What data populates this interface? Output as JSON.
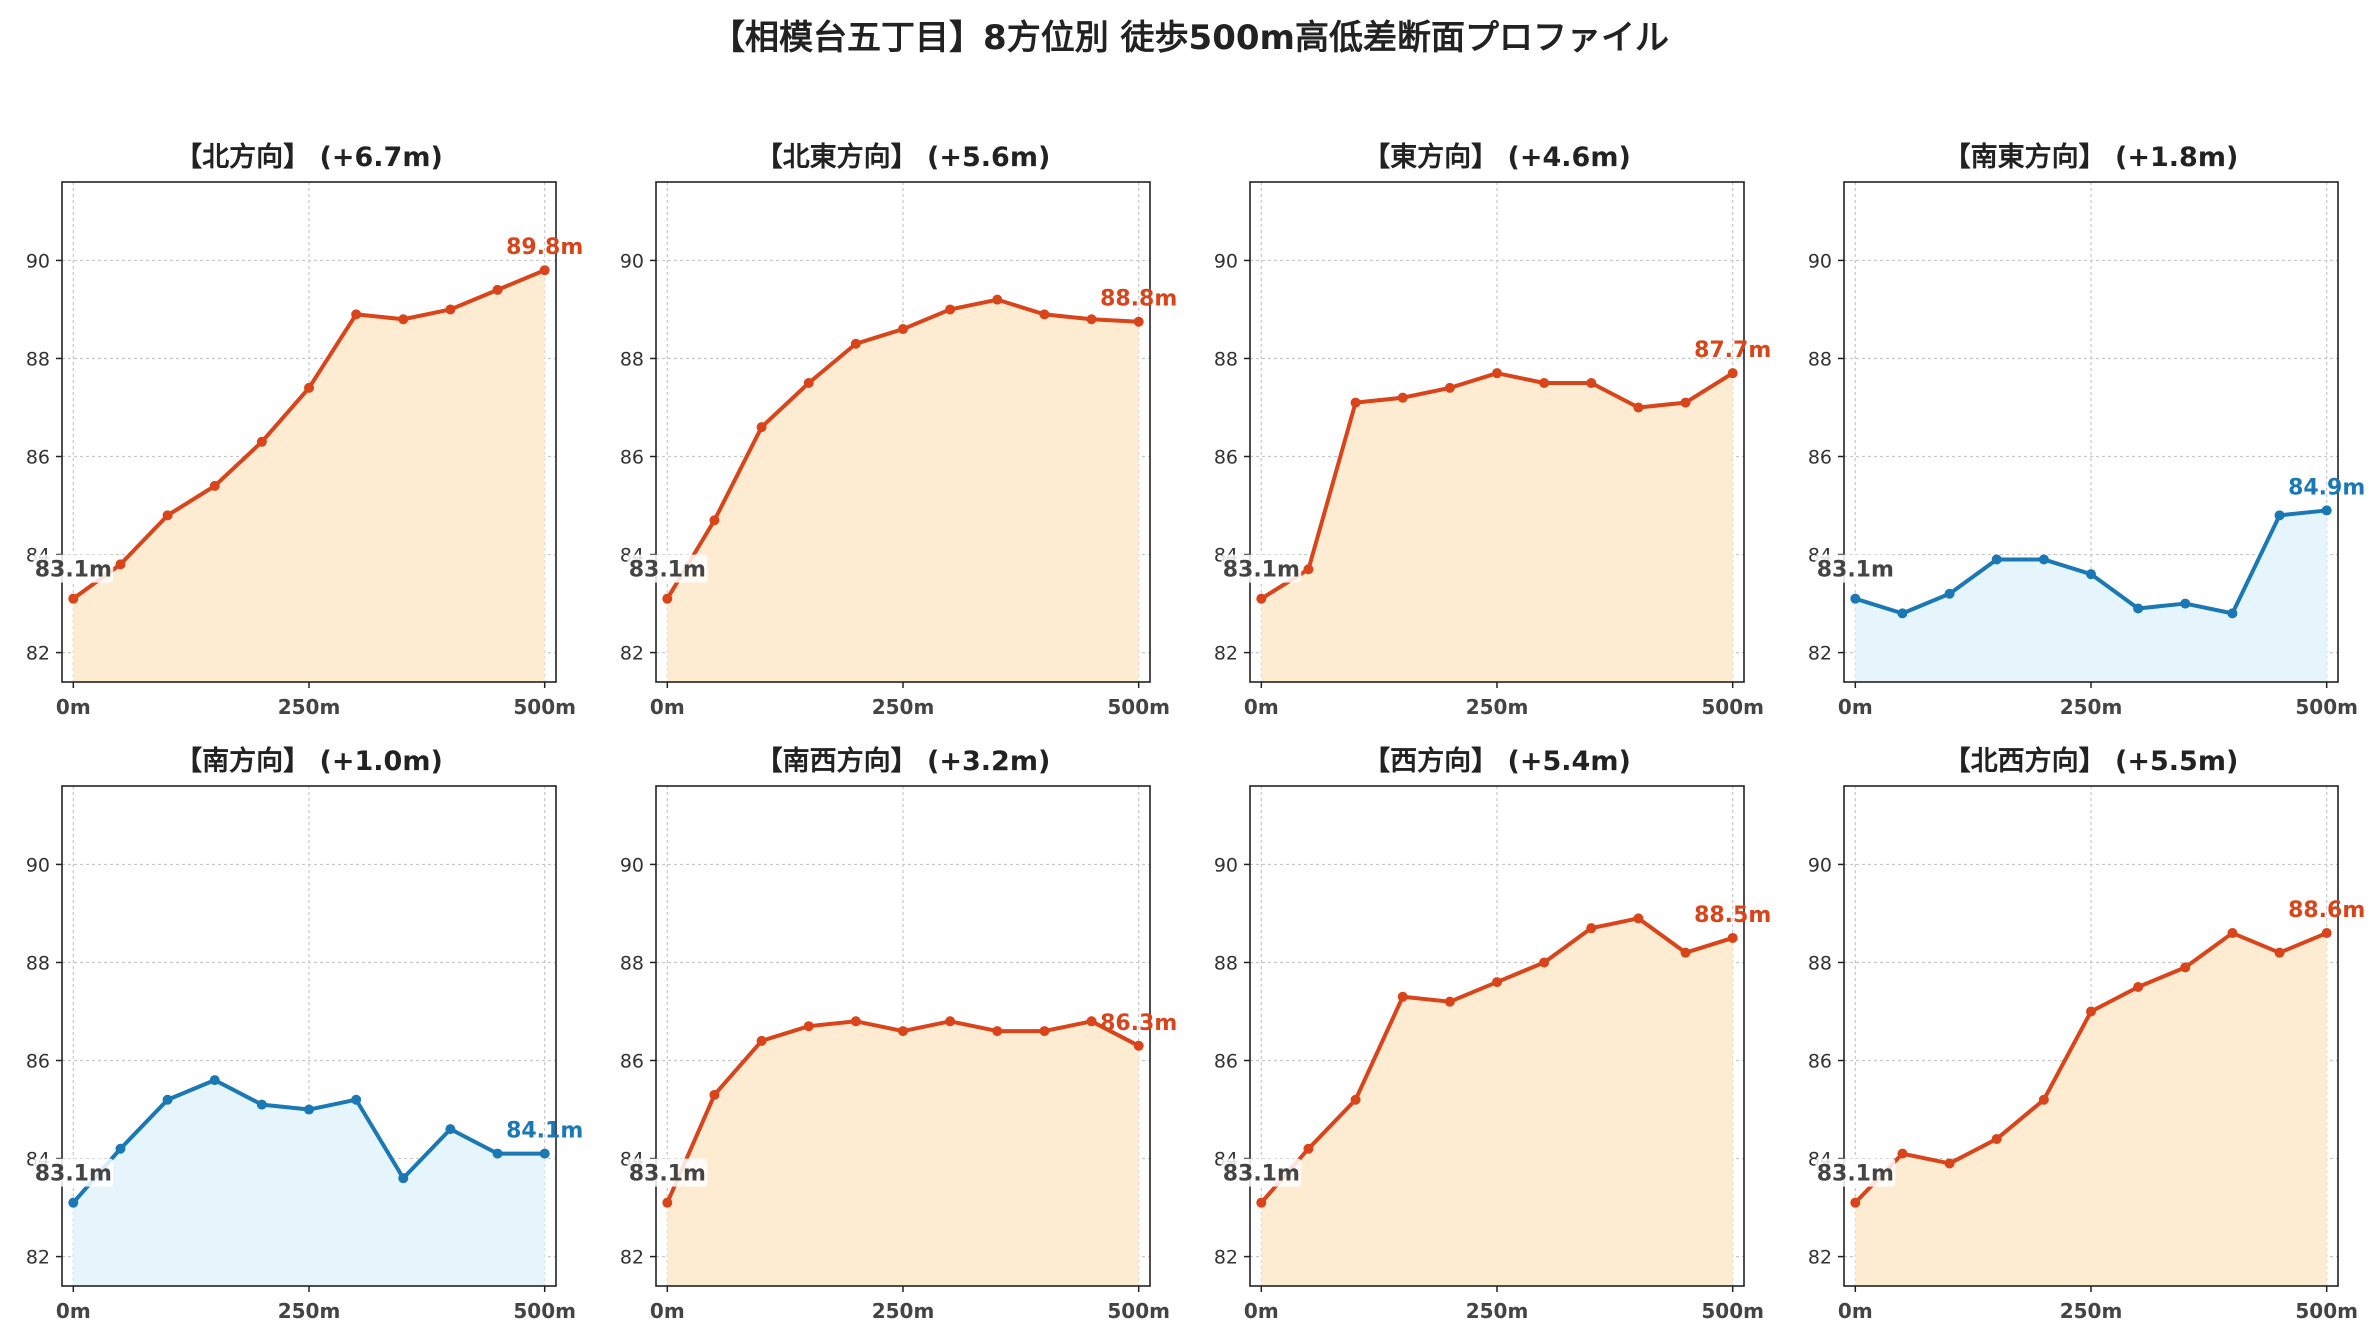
{
  "title": "【相模台五丁目】8方位別 徒歩500m高低差断面プロファイル",
  "colors": {
    "up_line": "#d9441a",
    "up_fill": "#fdecd2",
    "down_line": "#1a78b4",
    "down_fill": "#e6f4fb",
    "start_label": "#444444"
  },
  "chart_data": [
    {
      "type": "area",
      "title": "【北方向】 (+6.7m)",
      "trend": "up",
      "x": [
        0,
        50,
        100,
        150,
        200,
        250,
        300,
        350,
        400,
        450,
        500
      ],
      "values": [
        83.1,
        83.8,
        84.8,
        85.4,
        86.3,
        87.4,
        88.9,
        88.8,
        89.0,
        89.4,
        89.8
      ],
      "start_label": "83.1m",
      "end_label": "89.8m",
      "xticks": [
        "0m",
        "250m",
        "500m"
      ],
      "yticks": [
        82,
        84,
        86,
        88,
        90
      ],
      "ylim": [
        81.4,
        91.6
      ],
      "grid": true
    },
    {
      "type": "area",
      "title": "【北東方向】 (+5.6m)",
      "trend": "up",
      "x": [
        0,
        50,
        100,
        150,
        200,
        250,
        300,
        350,
        400,
        450,
        500
      ],
      "values": [
        83.1,
        84.7,
        86.6,
        87.5,
        88.3,
        88.6,
        89.0,
        89.2,
        88.9,
        88.8,
        88.75
      ],
      "start_label": "83.1m",
      "end_label": "88.8m",
      "xticks": [
        "0m",
        "250m",
        "500m"
      ],
      "yticks": [
        82,
        84,
        86,
        88,
        90
      ],
      "ylim": [
        81.4,
        91.6
      ],
      "grid": true
    },
    {
      "type": "area",
      "title": "【東方向】 (+4.6m)",
      "trend": "up",
      "x": [
        0,
        50,
        100,
        150,
        200,
        250,
        300,
        350,
        400,
        450,
        500
      ],
      "values": [
        83.1,
        83.7,
        87.1,
        87.2,
        87.4,
        87.7,
        87.5,
        87.5,
        87.0,
        87.1,
        87.7
      ],
      "start_label": "83.1m",
      "end_label": "87.7m",
      "xticks": [
        "0m",
        "250m",
        "500m"
      ],
      "yticks": [
        82,
        84,
        86,
        88,
        90
      ],
      "ylim": [
        81.4,
        91.6
      ],
      "grid": true
    },
    {
      "type": "area",
      "title": "【南東方向】 (+1.8m)",
      "trend": "down",
      "x": [
        0,
        50,
        100,
        150,
        200,
        250,
        300,
        350,
        400,
        450,
        500
      ],
      "values": [
        83.1,
        82.8,
        83.2,
        83.9,
        83.9,
        83.6,
        82.9,
        83.0,
        82.8,
        84.8,
        84.9
      ],
      "start_label": "83.1m",
      "end_label": "84.9m",
      "xticks": [
        "0m",
        "250m",
        "500m"
      ],
      "yticks": [
        82,
        84,
        86,
        88,
        90
      ],
      "ylim": [
        81.4,
        91.6
      ],
      "grid": true
    },
    {
      "type": "area",
      "title": "【南方向】 (+1.0m)",
      "trend": "down",
      "x": [
        0,
        50,
        100,
        150,
        200,
        250,
        300,
        350,
        400,
        450,
        500
      ],
      "values": [
        83.1,
        84.2,
        85.2,
        85.6,
        85.1,
        85.0,
        85.2,
        83.6,
        84.6,
        84.1,
        84.1
      ],
      "start_label": "83.1m",
      "end_label": "84.1m",
      "xticks": [
        "0m",
        "250m",
        "500m"
      ],
      "yticks": [
        82,
        84,
        86,
        88,
        90
      ],
      "ylim": [
        81.4,
        91.6
      ],
      "grid": true
    },
    {
      "type": "area",
      "title": "【南西方向】 (+3.2m)",
      "trend": "up",
      "x": [
        0,
        50,
        100,
        150,
        200,
        250,
        300,
        350,
        400,
        450,
        500
      ],
      "values": [
        83.1,
        85.3,
        86.4,
        86.7,
        86.8,
        86.6,
        86.8,
        86.6,
        86.6,
        86.8,
        86.3
      ],
      "start_label": "83.1m",
      "end_label": "86.3m",
      "xticks": [
        "0m",
        "250m",
        "500m"
      ],
      "yticks": [
        82,
        84,
        86,
        88,
        90
      ],
      "ylim": [
        81.4,
        91.6
      ],
      "grid": true
    },
    {
      "type": "area",
      "title": "【西方向】 (+5.4m)",
      "trend": "up",
      "x": [
        0,
        50,
        100,
        150,
        200,
        250,
        300,
        350,
        400,
        450,
        500
      ],
      "values": [
        83.1,
        84.2,
        85.2,
        87.3,
        87.2,
        87.6,
        88.0,
        88.7,
        88.9,
        88.2,
        88.5
      ],
      "start_label": "83.1m",
      "end_label": "88.5m",
      "xticks": [
        "0m",
        "250m",
        "500m"
      ],
      "yticks": [
        82,
        84,
        86,
        88,
        90
      ],
      "ylim": [
        81.4,
        91.6
      ],
      "grid": true
    },
    {
      "type": "area",
      "title": "【北西方向】 (+5.5m)",
      "trend": "up",
      "x": [
        0,
        50,
        100,
        150,
        200,
        250,
        300,
        350,
        400,
        450,
        500
      ],
      "values": [
        83.1,
        84.1,
        83.9,
        84.4,
        85.2,
        87.0,
        87.5,
        87.9,
        88.6,
        88.2,
        88.6
      ],
      "start_label": "83.1m",
      "end_label": "88.6m",
      "xticks": [
        "0m",
        "250m",
        "500m"
      ],
      "yticks": [
        82,
        84,
        86,
        88,
        90
      ],
      "ylim": [
        81.4,
        91.6
      ],
      "grid": true
    }
  ]
}
